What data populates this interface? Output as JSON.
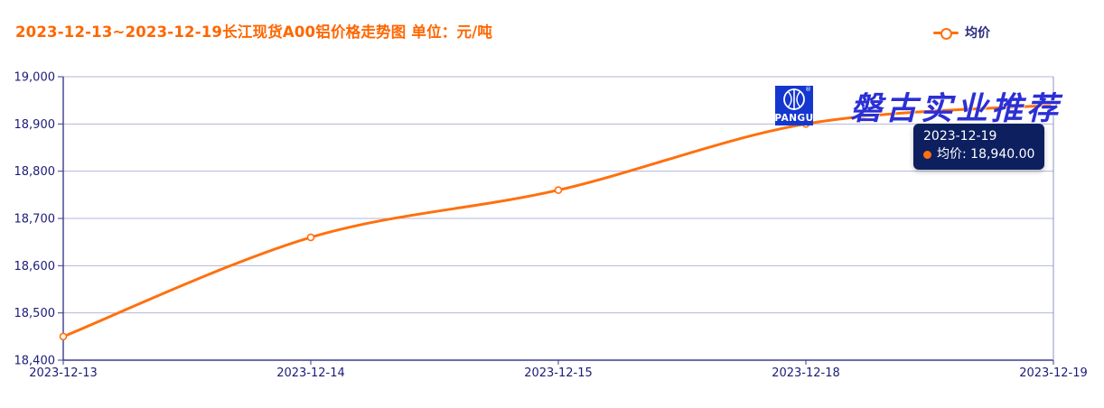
{
  "title": "2023-12-13~2023-12-19长江现货A00铝价格走势图 单位：元/吨",
  "title_color": "#ff6600",
  "legend": {
    "label": "均价"
  },
  "watermark": {
    "logo_text": "PANGU",
    "logo_reg_mark": "®",
    "text": "磐古实业推荐"
  },
  "tooltip": {
    "date": "2023-12-19",
    "entry": "均价: 18,940.00"
  },
  "chart_data": {
    "type": "line",
    "title": "2023-12-13~2023-12-19长江现货A00铝价格走势图",
    "unit": "元/吨",
    "categories": [
      "2023-12-13",
      "2023-12-14",
      "2023-12-15",
      "2023-12-18",
      "2023-12-19"
    ],
    "series": [
      {
        "name": "均价",
        "values": [
          18450,
          18660,
          18760,
          18900,
          18940
        ]
      }
    ],
    "ylim": [
      18400,
      19000
    ],
    "y_ticks": [
      18400,
      18500,
      18600,
      18700,
      18800,
      18900,
      19000
    ],
    "y_tick_labels": [
      "18,400",
      "18,500",
      "18,600",
      "18,700",
      "18,800",
      "18,900",
      "19,000"
    ],
    "smooth": true,
    "grid": true,
    "legend_position": "top-right",
    "line_color": "#ff700e",
    "axis_color": "#3b3b8f",
    "grid_color": "#b4b4dc",
    "tick_label_color": "#1c1c78",
    "crosshair_x": "2023-12-19",
    "hovered_point": {
      "category": "2023-12-19",
      "value": 18940
    }
  }
}
